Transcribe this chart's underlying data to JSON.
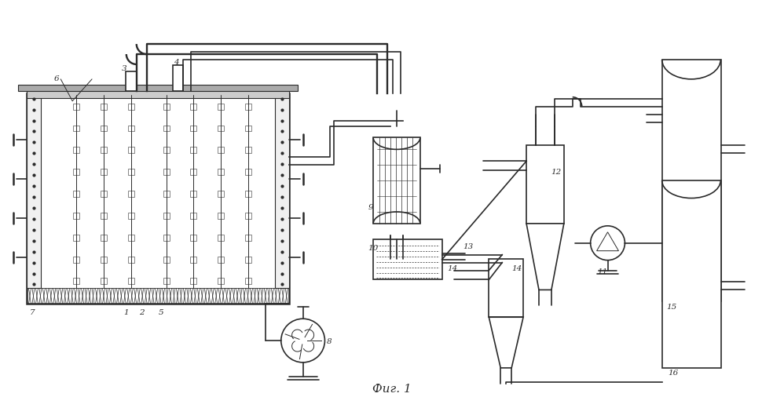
{
  "title": "Фиг. 1",
  "bg_color": "#ffffff",
  "lc": "#2a2a2a",
  "lw": 1.2,
  "tlw": 0.7,
  "thklw": 1.8
}
